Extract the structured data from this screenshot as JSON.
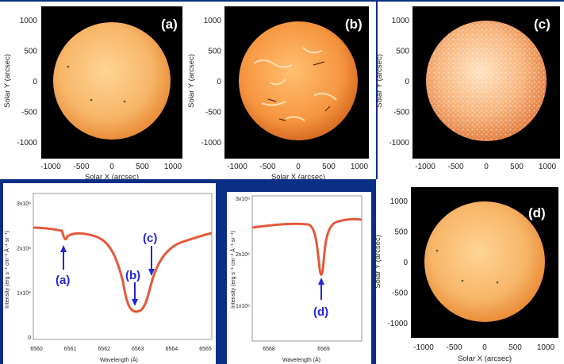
{
  "images": {
    "a": {
      "label": "(a)"
    },
    "b": {
      "label": "(b)"
    },
    "c": {
      "label": "(c)"
    },
    "d": {
      "label": "(d)"
    }
  },
  "axes": {
    "solar_x_label": "Solar X (arcsec)",
    "solar_y_label": "Solar Y (arcsec)",
    "x_ticks": [
      "-1000",
      "-500",
      "0",
      "500",
      "1000"
    ],
    "y_ticks": [
      "1000",
      "500",
      "0",
      "-500",
      "-1000"
    ]
  },
  "spectra": {
    "left": {
      "ylabel": "Intensity (erg s⁻¹ cm⁻² Å⁻¹ sr⁻¹)",
      "xlabel": "Wavelength (Å)",
      "x_ticks": [
        "6560",
        "6561",
        "6562",
        "6563",
        "6564",
        "6565"
      ],
      "y_ticks": [
        "3x10⁶",
        "2x10⁶",
        "1x10⁶",
        "0"
      ],
      "markers": [
        {
          "label": "(a)"
        },
        {
          "label": "(b)"
        },
        {
          "label": "(c)"
        }
      ]
    },
    "right": {
      "ylabel": "Intensity (erg s⁻¹ cm⁻² Å⁻¹ sr⁻¹)",
      "xlabel": "Wavelength (Å)",
      "x_ticks": [
        "6568",
        "6569"
      ],
      "y_ticks": [
        "3x10⁶",
        "2x10⁶",
        "1x10⁶"
      ],
      "markers": [
        {
          "label": "(d)"
        }
      ]
    }
  },
  "colors": {
    "frame_blue": "#0c2f86",
    "curve": "#e25a3a",
    "arrow_blue": "#2525d8"
  }
}
